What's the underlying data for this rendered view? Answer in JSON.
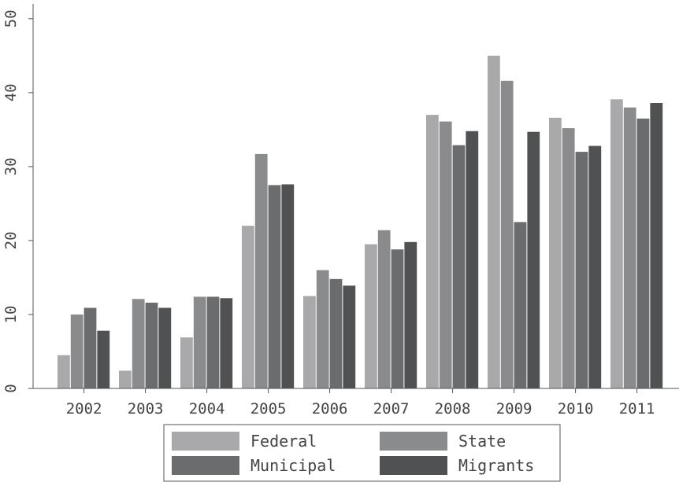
{
  "chart_data": {
    "type": "bar",
    "categories": [
      "2002",
      "2003",
      "2004",
      "2005",
      "2006",
      "2007",
      "2008",
      "2009",
      "2010",
      "2011"
    ],
    "series": [
      {
        "name": "Federal",
        "color": "#a9a9ab",
        "values": [
          4.5,
          2.4,
          6.9,
          22.0,
          12.5,
          19.5,
          37.0,
          45.0,
          36.6,
          39.1
        ]
      },
      {
        "name": "State",
        "color": "#8a8b8d",
        "values": [
          10.0,
          12.1,
          12.4,
          31.7,
          16.0,
          21.4,
          36.1,
          41.6,
          35.2,
          38.0
        ]
      },
      {
        "name": "Municipal",
        "color": "#6b6c6e",
        "values": [
          10.9,
          11.6,
          12.4,
          27.5,
          14.8,
          18.8,
          32.9,
          22.5,
          32.0,
          36.5
        ]
      },
      {
        "name": "Migrants",
        "color": "#505153",
        "values": [
          7.8,
          10.9,
          12.2,
          27.6,
          13.9,
          19.8,
          34.8,
          34.7,
          32.8,
          38.6
        ]
      }
    ],
    "title": "",
    "xlabel": "",
    "ylabel": "",
    "ylim": [
      0,
      52
    ],
    "yticks": [
      "0",
      "10",
      "20",
      "30",
      "40",
      "50"
    ],
    "grid": false,
    "legend_position": "bottom"
  }
}
